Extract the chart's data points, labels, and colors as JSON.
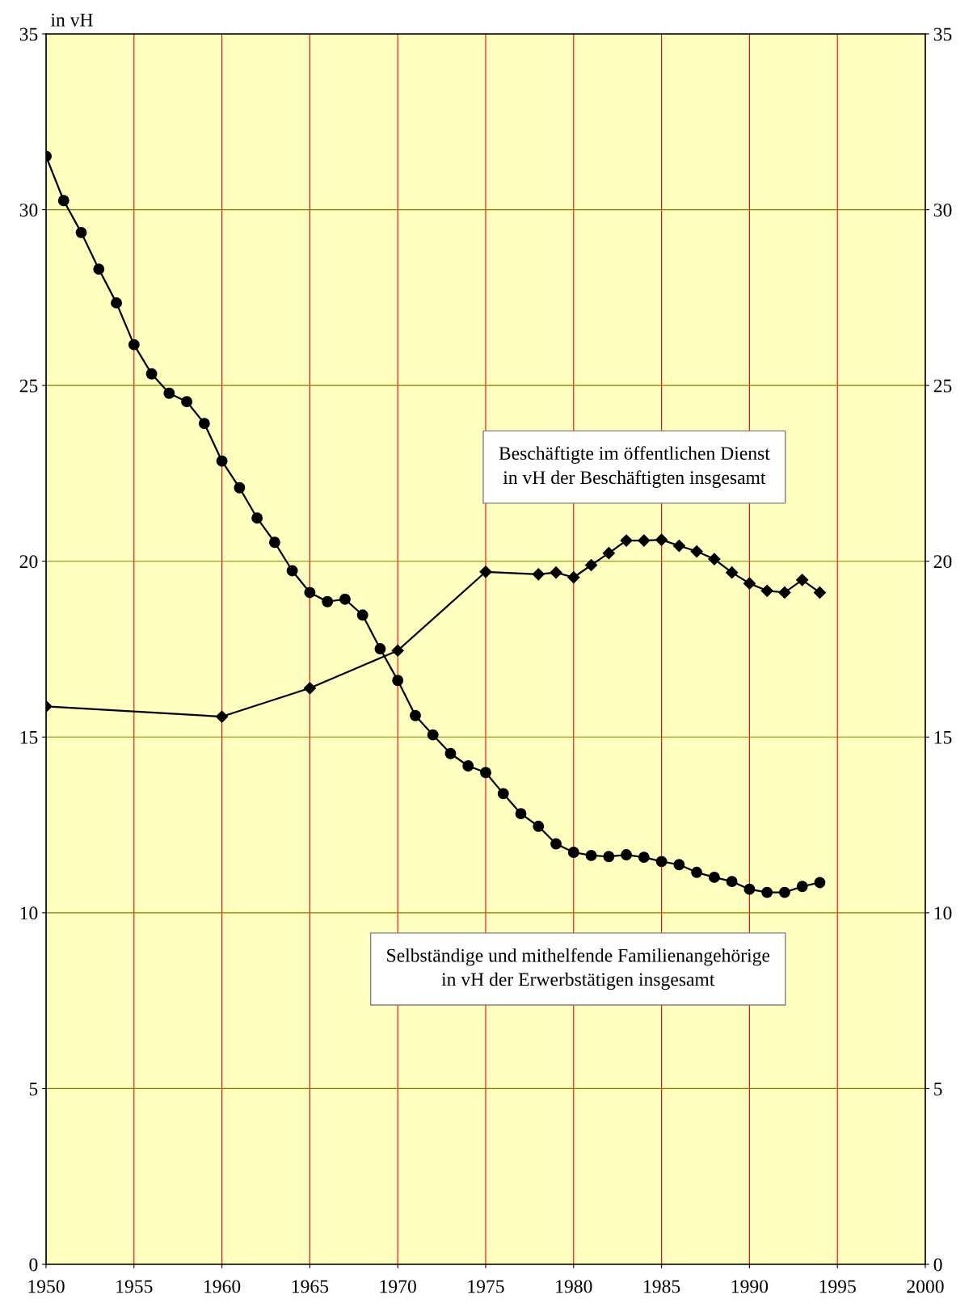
{
  "chart_data": {
    "type": "line",
    "ylabel": "in vH",
    "x": [
      1950,
      1951,
      1952,
      1953,
      1954,
      1955,
      1956,
      1957,
      1958,
      1959,
      1960,
      1961,
      1962,
      1963,
      1964,
      1965,
      1966,
      1967,
      1968,
      1969,
      1970,
      1971,
      1972,
      1973,
      1974,
      1975,
      1976,
      1977,
      1978,
      1979,
      1980,
      1981,
      1982,
      1983,
      1984,
      1985,
      1986,
      1987,
      1988,
      1989,
      1990,
      1991,
      1992,
      1993,
      1994
    ],
    "series": [
      {
        "color": "#000000",
        "marker": "diamond",
        "x": [
          1950,
          1960,
          1965,
          1970,
          1975,
          1978,
          1979,
          1980,
          1981,
          1982,
          1983,
          1984,
          1985,
          1986,
          1987,
          1988,
          1989,
          1990,
          1991,
          1992,
          1993,
          1994
        ],
        "values": [
          15.87,
          15.58,
          16.39,
          17.46,
          19.7,
          19.63,
          19.68,
          19.54,
          19.89,
          20.23,
          20.59,
          20.59,
          20.61,
          20.44,
          20.28,
          20.06,
          19.68,
          19.37,
          19.16,
          19.11,
          19.47,
          19.11
        ]
      },
      {
        "color": "#000000",
        "marker": "circle",
        "values": [
          31.52,
          30.26,
          29.35,
          28.31,
          27.35,
          26.16,
          25.33,
          24.78,
          24.54,
          23.92,
          22.85,
          22.09,
          21.23,
          20.54,
          19.73,
          19.11,
          18.85,
          18.92,
          18.47,
          17.51,
          16.61,
          15.61,
          15.06,
          14.53,
          14.18,
          13.99,
          13.39,
          12.82,
          12.46,
          11.96,
          11.72,
          11.63,
          11.6,
          11.65,
          11.58,
          11.46,
          11.37,
          11.15,
          11.01,
          10.89,
          10.67,
          10.58,
          10.58,
          10.75,
          10.86
        ]
      }
    ],
    "annotations": [
      "Beschäftigte im öffentlichen Dienst\nin vH der Beschäftigten insgesamt",
      "Selbständige und mithelfende Familienangehörige\nin vH der Erwerbstätigen insgesamt"
    ],
    "xlim": [
      1950,
      2000
    ],
    "xticks": [
      1950,
      1955,
      1960,
      1965,
      1970,
      1975,
      1980,
      1985,
      1990,
      1995,
      2000
    ],
    "ylim": [
      0,
      35
    ],
    "yticks": [
      0,
      5,
      10,
      15,
      20,
      25,
      30,
      35
    ],
    "y2lim": [
      0,
      35
    ],
    "y2ticks": [
      0,
      5,
      10,
      15,
      20,
      25,
      30,
      35
    ],
    "grid": true,
    "line_style": "solid"
  }
}
